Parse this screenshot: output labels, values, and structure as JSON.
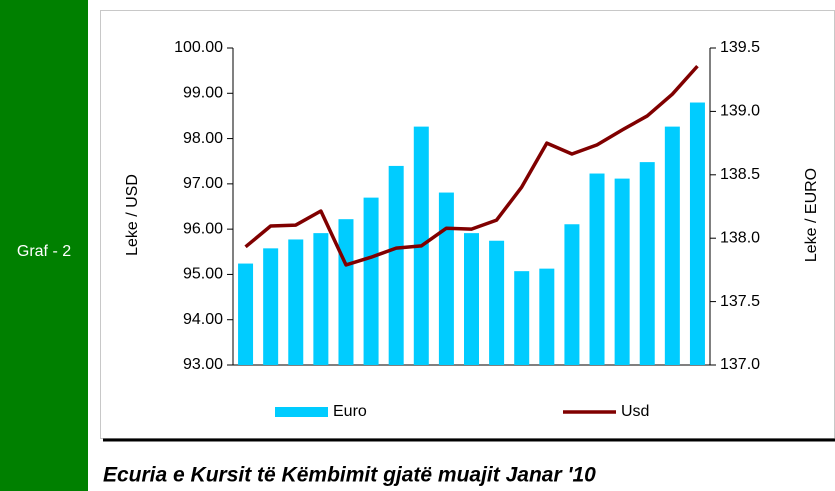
{
  "sidebar": {
    "label": "Graf - 2"
  },
  "caption": "Ecuria e Kursit të Këmbimit gjatë muajit Janar '10",
  "chart_data": {
    "type": "bar",
    "ylabel": "Leke / USD",
    "y2label": "Leke / EURO",
    "ylim": [
      93,
      100
    ],
    "yticks": [
      {
        "value": 93,
        "label": "93.00"
      },
      {
        "value": 94,
        "label": "94.00"
      },
      {
        "value": 95,
        "label": "95.00"
      },
      {
        "value": 96,
        "label": "96.00"
      },
      {
        "value": 97,
        "label": "97.00"
      },
      {
        "value": 98,
        "label": "98.00"
      },
      {
        "value": 99,
        "label": "99.00"
      },
      {
        "value": 100,
        "label": "100.00"
      }
    ],
    "y2lim": [
      137,
      139.5
    ],
    "y2ticks": [
      {
        "value": 137,
        "label": "137.0"
      },
      137.5,
      {
        "value": 138,
        "label": "138.0"
      },
      138.5,
      {
        "value": 139,
        "label": "139.0"
      },
      139.5
    ],
    "series": [
      {
        "name": "Euro",
        "type": "bar",
        "axis": "y2",
        "color": "#00ccff",
        "values": [
          137.8,
          137.92,
          137.99,
          138.04,
          138.15,
          138.32,
          138.57,
          138.88,
          138.36,
          138.04,
          137.98,
          137.74,
          137.76,
          138.11,
          138.51,
          138.47,
          138.6,
          138.88,
          139.07
        ]
      },
      {
        "name": "Usd",
        "type": "line",
        "color": "#800000",
        "values": [
          95.61,
          96.07,
          96.09,
          96.4,
          95.21,
          95.38,
          95.58,
          95.63,
          96.02,
          96.0,
          96.2,
          96.93,
          97.9,
          97.66,
          97.86,
          98.19,
          98.5,
          98.98,
          99.6
        ]
      }
    ]
  }
}
